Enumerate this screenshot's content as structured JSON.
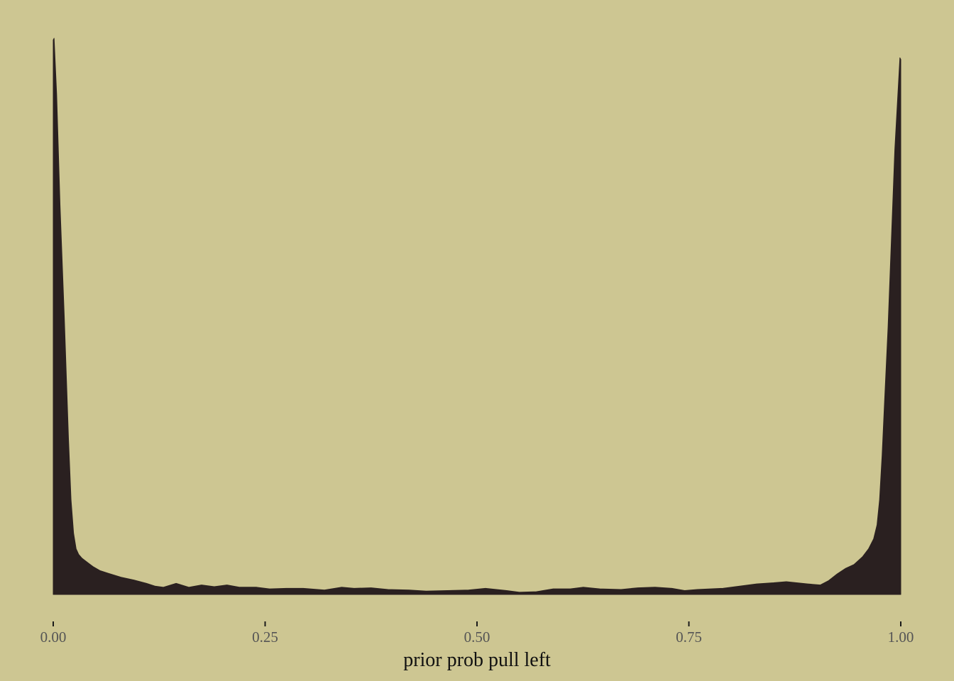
{
  "colors": {
    "background": "#CDC692",
    "fill": "#2A2020",
    "tick": "#1A1A1A",
    "tick_label": "#555555",
    "axis_title": "#111111"
  },
  "chart_data": {
    "type": "area",
    "xlabel": "prior prob pull left",
    "ylabel": "",
    "xlim": [
      0,
      1
    ],
    "ylim": [
      0,
      1
    ],
    "x_ticks": [
      0,
      0.25,
      0.5,
      0.75,
      1
    ],
    "x_tick_labels": [
      "0.00",
      "0.25",
      "0.50",
      "0.75",
      "1.00"
    ],
    "y_axis_visible": false,
    "grid": false,
    "series": [
      {
        "x": [
          0,
          0.001,
          0.004,
          0.008,
          0.013,
          0.018,
          0.021,
          0.024,
          0.027,
          0.03,
          0.034,
          0.04,
          0.047,
          0.055,
          0.065,
          0.08,
          0.095,
          0.11,
          0.12,
          0.13,
          0.145,
          0.16,
          0.175,
          0.19,
          0.205,
          0.22,
          0.24,
          0.255,
          0.275,
          0.295,
          0.32,
          0.34,
          0.355,
          0.375,
          0.395,
          0.42,
          0.44,
          0.465,
          0.49,
          0.51,
          0.535,
          0.55,
          0.57,
          0.59,
          0.61,
          0.625,
          0.645,
          0.67,
          0.69,
          0.71,
          0.73,
          0.745,
          0.76,
          0.79,
          0.81,
          0.83,
          0.85,
          0.865,
          0.89,
          0.905,
          0.915,
          0.925,
          0.935,
          0.945,
          0.955,
          0.962,
          0.968,
          0.972,
          0.975,
          0.978,
          0.981,
          0.985,
          0.989,
          0.993,
          0.997,
          0.999,
          1.0
        ],
        "y": [
          0.997,
          1.0,
          0.9,
          0.7,
          0.5,
          0.28,
          0.17,
          0.11,
          0.082,
          0.072,
          0.065,
          0.058,
          0.05,
          0.043,
          0.038,
          0.031,
          0.026,
          0.02,
          0.015,
          0.013,
          0.02,
          0.013,
          0.017,
          0.014,
          0.017,
          0.013,
          0.013,
          0.01,
          0.011,
          0.011,
          0.008,
          0.013,
          0.011,
          0.012,
          0.009,
          0.008,
          0.006,
          0.007,
          0.008,
          0.011,
          0.007,
          0.004,
          0.005,
          0.01,
          0.01,
          0.013,
          0.01,
          0.009,
          0.012,
          0.013,
          0.011,
          0.007,
          0.009,
          0.011,
          0.015,
          0.019,
          0.021,
          0.023,
          0.019,
          0.017,
          0.025,
          0.037,
          0.047,
          0.054,
          0.068,
          0.082,
          0.1,
          0.125,
          0.17,
          0.25,
          0.35,
          0.48,
          0.64,
          0.8,
          0.91,
          0.965,
          0.962
        ]
      }
    ]
  }
}
